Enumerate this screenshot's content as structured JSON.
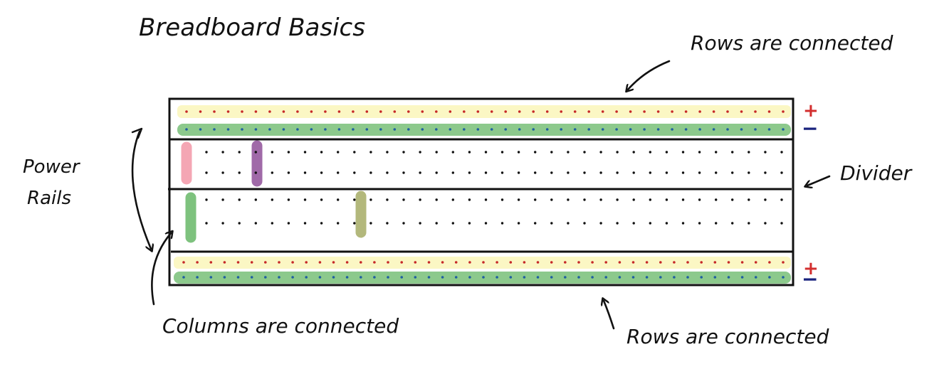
{
  "title": "Breadboard Basics",
  "labels": {
    "rows_top": "Rows are connected",
    "rows_bottom": "Rows are connected",
    "power_rails": [
      "Power",
      "Rails"
    ],
    "columns": "Columns are connected",
    "divider": "Divider",
    "plus_top": "+",
    "minus_top": "−",
    "plus_bottom": "+",
    "minus_bottom": "−"
  },
  "colors": {
    "rail_plus_band": "#fbf7c4",
    "rail_minus_band": "#8cc98c",
    "plus_dot": "#c62828",
    "minus_dot": "#1f5fa0",
    "plus_sign": "#d32f2f",
    "minus_sign": "#1a237e",
    "col_pink": "#f4a6b4",
    "col_purple": "#a06aa8",
    "col_green": "#7ec27e",
    "col_olive": "#b3b87c"
  }
}
